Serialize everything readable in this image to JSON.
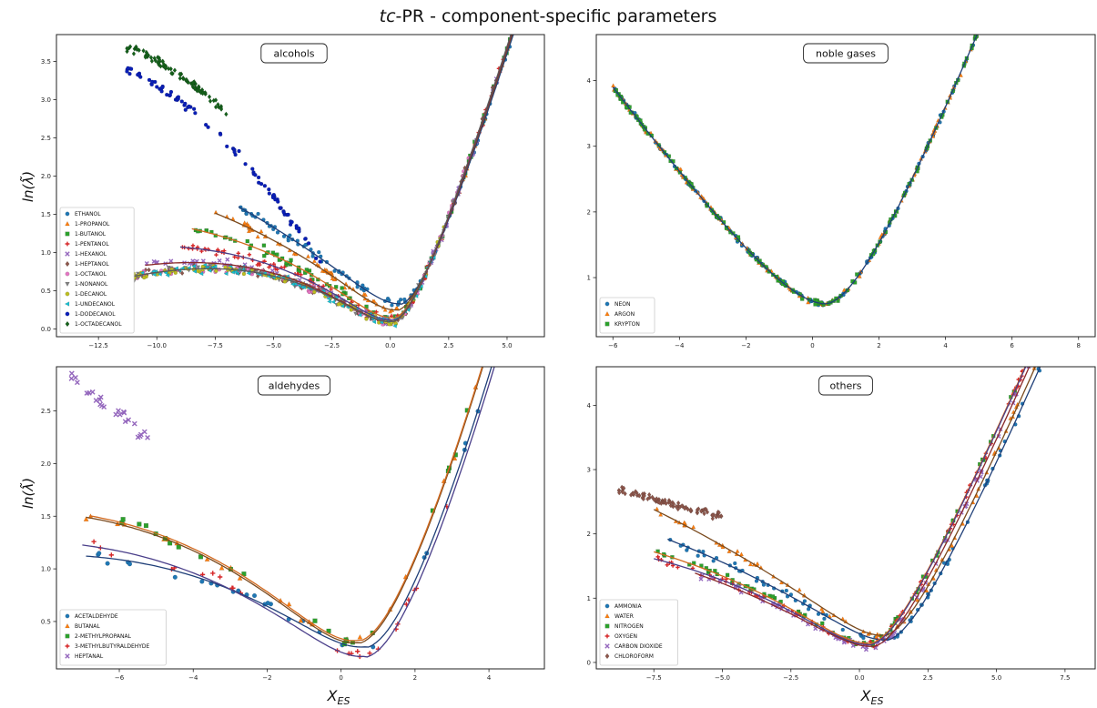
{
  "figure": {
    "title_italic": "tc",
    "title_rest": "-PR - component-specific parameters",
    "ylabel": "ln(λ̃)",
    "xlabel_main": "X",
    "xlabel_sub": "ES"
  },
  "chart_data": [
    {
      "type": "scatter",
      "title": "alcohols",
      "xlim": [
        -14.3,
        6.6
      ],
      "ylim": [
        -0.1,
        3.85
      ],
      "xticks": [
        -12.5,
        -10.0,
        -7.5,
        -5.0,
        -2.5,
        0.0,
        2.5,
        5.0
      ],
      "yticks": [
        0.0,
        0.5,
        1.0,
        1.5,
        2.0,
        2.5,
        3.0,
        3.5
      ],
      "legend_position": "lower left",
      "grid": false,
      "series": [
        {
          "name": "ETHANOL",
          "color": "#1f77b4",
          "marker": "circle",
          "x_range": [
            -6.5,
            5.7
          ],
          "fit": [
            0.45,
            0.21,
            0.055,
            0.33
          ]
        },
        {
          "name": "1-PROPANOL",
          "color": "#ff7f0e",
          "marker": "triangle",
          "x_range": [
            -7.5,
            5.5
          ],
          "fit": [
            0.32,
            0.22,
            0.07,
            0.25
          ]
        },
        {
          "name": "1-BUTANOL",
          "color": "#2ca02c",
          "marker": "square",
          "x_range": [
            -8.5,
            5.3
          ],
          "fit": [
            0.18,
            0.23,
            0.085,
            0.15
          ]
        },
        {
          "name": "1-PENTANOL",
          "color": "#d62728",
          "marker": "plus",
          "x_range": [
            -9.0,
            5.0
          ],
          "fit": [
            0.15,
            0.22,
            0.095,
            0.12
          ]
        },
        {
          "name": "1-HEXANOL",
          "color": "#9467bd",
          "marker": "x",
          "x_range": [
            -10.5,
            4.8
          ],
          "fit": [
            0.12,
            0.22,
            0.105,
            0.1
          ]
        },
        {
          "name": "1-HEPTANOL",
          "color": "#8c564b",
          "marker": "diamond",
          "x_range": [
            -11.0,
            4.6
          ],
          "fit": [
            0.1,
            0.22,
            0.11,
            0.1
          ]
        },
        {
          "name": "1-OCTANOL",
          "color": "#e377c2",
          "marker": "circle",
          "x_range": [
            -11.5,
            3.5
          ],
          "fit": [
            0.1,
            0.22,
            0.11,
            0.1
          ]
        },
        {
          "name": "1-NONANOL",
          "color": "#7f7f7f",
          "marker": "triangle-down",
          "x_range": [
            -13.8,
            3.0
          ],
          "fit": [
            0.1,
            0.22,
            0.11,
            0.1
          ]
        },
        {
          "name": "1-DECANOL",
          "color": "#bcbd22",
          "marker": "circle",
          "x_range": [
            -11.0,
            2.5
          ],
          "fit": [
            0.1,
            0.22,
            0.11,
            0.1
          ]
        },
        {
          "name": "1-UNDECANOL",
          "color": "#17becf",
          "marker": "triangle-left",
          "x_range": [
            -12.0,
            2.0
          ],
          "fit": [
            0.1,
            0.22,
            0.11,
            0.1
          ]
        },
        {
          "name": "1-DODECANOL",
          "color": "#0a1fb8",
          "marker": "circle",
          "x_range": [
            -11.3,
            -3.0
          ],
          "fit": [
            0.1,
            0.22,
            0.11,
            0.1
          ]
        },
        {
          "name": "1-OCTADECANOL",
          "color": "#15611b",
          "marker": "diamond",
          "x_range": [
            -11.3,
            -7.0
          ],
          "fit": [
            0.1,
            0.22,
            0.11,
            0.1
          ]
        }
      ]
    },
    {
      "type": "scatter",
      "title": "noble gases",
      "xlim": [
        -6.5,
        8.5
      ],
      "ylim": [
        0.1,
        4.7
      ],
      "xticks": [
        -6,
        -4,
        -2,
        0,
        2,
        4,
        6,
        8
      ],
      "yticks": [
        1,
        2,
        3,
        4
      ],
      "legend_position": "lower left",
      "grid": false,
      "series": [
        {
          "name": "NEON",
          "color": "#1f77b4",
          "marker": "circle",
          "x_range": [
            -6.0,
            8.0
          ],
          "fit": [
            0.4,
            0.6,
            0.92,
            0.33,
            0.42
          ]
        },
        {
          "name": "ARGON",
          "color": "#ff7f0e",
          "marker": "triangle",
          "x_range": [
            -6.0,
            8.1
          ],
          "fit": [
            0.4,
            0.6,
            0.92,
            0.33,
            0.42
          ]
        },
        {
          "name": "KRYPTON",
          "color": "#2ca02c",
          "marker": "square",
          "x_range": [
            -6.0,
            7.8
          ],
          "fit": [
            0.4,
            0.6,
            0.92,
            0.33,
            0.42
          ]
        }
      ]
    },
    {
      "type": "scatter",
      "title": "aldehydes",
      "xlim": [
        -7.7,
        5.5
      ],
      "ylim": [
        0.05,
        2.92
      ],
      "xticks": [
        -6,
        -4,
        -2,
        0,
        2,
        4
      ],
      "yticks": [
        0.5,
        1.0,
        1.5,
        2.0,
        2.5
      ],
      "legend_position": "lower left",
      "grid": false,
      "series": [
        {
          "name": "ACETALDEHYDE",
          "color": "#1f77b4",
          "marker": "circle",
          "x_range": [
            -6.9,
            4.8
          ],
          "fit": [
            0.7,
            0.25,
            0.105,
            0.26
          ]
        },
        {
          "name": "BUTANAL",
          "color": "#ff7f0e",
          "marker": "triangle",
          "x_range": [
            -6.9,
            5.1
          ],
          "fit": [
            0.5,
            0.32,
            0.1,
            0.3
          ]
        },
        {
          "name": "2-METHYLPROPANAL",
          "color": "#2ca02c",
          "marker": "square",
          "x_range": [
            -6.8,
            5.0
          ],
          "fit": [
            0.5,
            0.32,
            0.1,
            0.32
          ]
        },
        {
          "name": "3-METHYLBUTYRALDEHYDE",
          "color": "#d62728",
          "marker": "plus",
          "x_range": [
            -7.0,
            4.9
          ],
          "fit": [
            0.7,
            0.28,
            0.1,
            0.17
          ]
        },
        {
          "name": "HEPTANAL",
          "color": "#9467bd",
          "marker": "x",
          "x_range": [
            -7.3,
            -5.2
          ],
          "fit": [
            0.7,
            0.28,
            0.1,
            0.17
          ]
        }
      ]
    },
    {
      "type": "scatter",
      "title": "others",
      "xlim": [
        -9.6,
        8.6
      ],
      "ylim": [
        -0.1,
        4.6
      ],
      "xticks": [
        -7.5,
        -5.0,
        -2.5,
        0.0,
        2.5,
        5.0,
        7.5
      ],
      "yticks": [
        0,
        1,
        2,
        3,
        4
      ],
      "legend_position": "lower left",
      "grid": false,
      "series": [
        {
          "name": "AMMONIA",
          "color": "#1f77b4",
          "marker": "circle",
          "x_range": [
            -7.0,
            7.5
          ],
          "fit": [
            1.0,
            0.24,
            0.06,
            0.35
          ]
        },
        {
          "name": "WATER",
          "color": "#ff7f0e",
          "marker": "triangle",
          "x_range": [
            -7.5,
            8.0
          ],
          "fit": [
            0.9,
            0.26,
            0.05,
            0.42
          ]
        },
        {
          "name": "NITROGEN",
          "color": "#2ca02c",
          "marker": "square",
          "x_range": [
            -7.5,
            7.7
          ],
          "fit": [
            0.4,
            0.26,
            0.075,
            0.3
          ]
        },
        {
          "name": "OXYGEN",
          "color": "#d62728",
          "marker": "plus",
          "x_range": [
            -7.5,
            6.5
          ],
          "fit": [
            0.4,
            0.26,
            0.08,
            0.28
          ]
        },
        {
          "name": "CARBON DIOXIDE",
          "color": "#9467bd",
          "marker": "x",
          "x_range": [
            -6.0,
            8.2
          ],
          "fit": [
            0.5,
            0.23,
            0.07,
            0.25
          ]
        },
        {
          "name": "CHLOROFORM",
          "color": "#8c564b",
          "marker": "diamond",
          "x_range": [
            -8.8,
            -5.0
          ],
          "fit": [
            0.5,
            0.23,
            0.07,
            0.25
          ]
        }
      ]
    }
  ]
}
